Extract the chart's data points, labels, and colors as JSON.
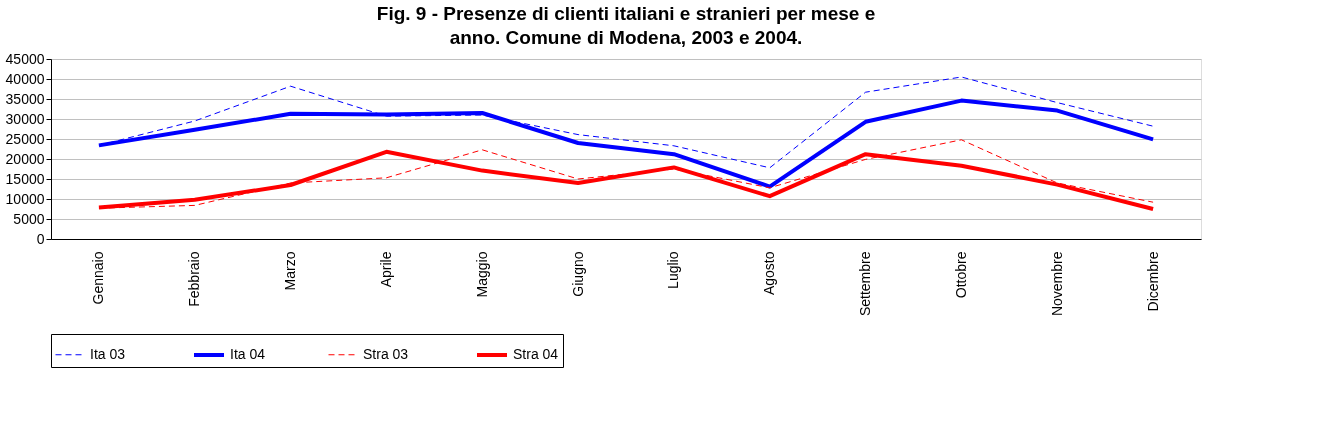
{
  "chart_data": {
    "type": "line",
    "title": "Fig. 9 - Presenze di clienti italiani e stranieri per mese e anno. Comune di Modena, 2003 e 2004.",
    "categories": [
      "Gennaio",
      "Febbraio",
      "Marzo",
      "Aprile",
      "Maggio",
      "Giugno",
      "Luglio",
      "Agosto",
      "Settembre",
      "Ottobre",
      "Novembre",
      "Dicembre"
    ],
    "series": [
      {
        "name": "Ita 03",
        "color": "#0000ff",
        "line_style": "dashed",
        "values": [
          23400,
          29500,
          38200,
          30700,
          31000,
          26100,
          23300,
          17800,
          36700,
          40500,
          34100,
          28200
        ]
      },
      {
        "name": "Ita 04",
        "color": "#0000ff",
        "line_style": "solid",
        "values": [
          23400,
          27300,
          31300,
          31100,
          31500,
          24000,
          21200,
          13100,
          29300,
          34600,
          32100,
          24900
        ]
      },
      {
        "name": "Stra 03",
        "color": "#ff0000",
        "line_style": "dashed",
        "values": [
          7700,
          8400,
          14000,
          15300,
          22300,
          15000,
          17500,
          12800,
          19900,
          24800,
          14000,
          9200
        ]
      },
      {
        "name": "Stra 04",
        "color": "#ff0000",
        "line_style": "solid",
        "values": [
          7900,
          9800,
          13500,
          21800,
          17100,
          14000,
          17900,
          10700,
          21200,
          18300,
          13600,
          7500
        ]
      }
    ],
    "ylim": [
      0,
      45000
    ],
    "yticks": [
      0,
      5000,
      10000,
      15000,
      20000,
      25000,
      30000,
      35000,
      40000,
      45000
    ],
    "grid": "y",
    "legend": "bottom",
    "marker": "none"
  }
}
